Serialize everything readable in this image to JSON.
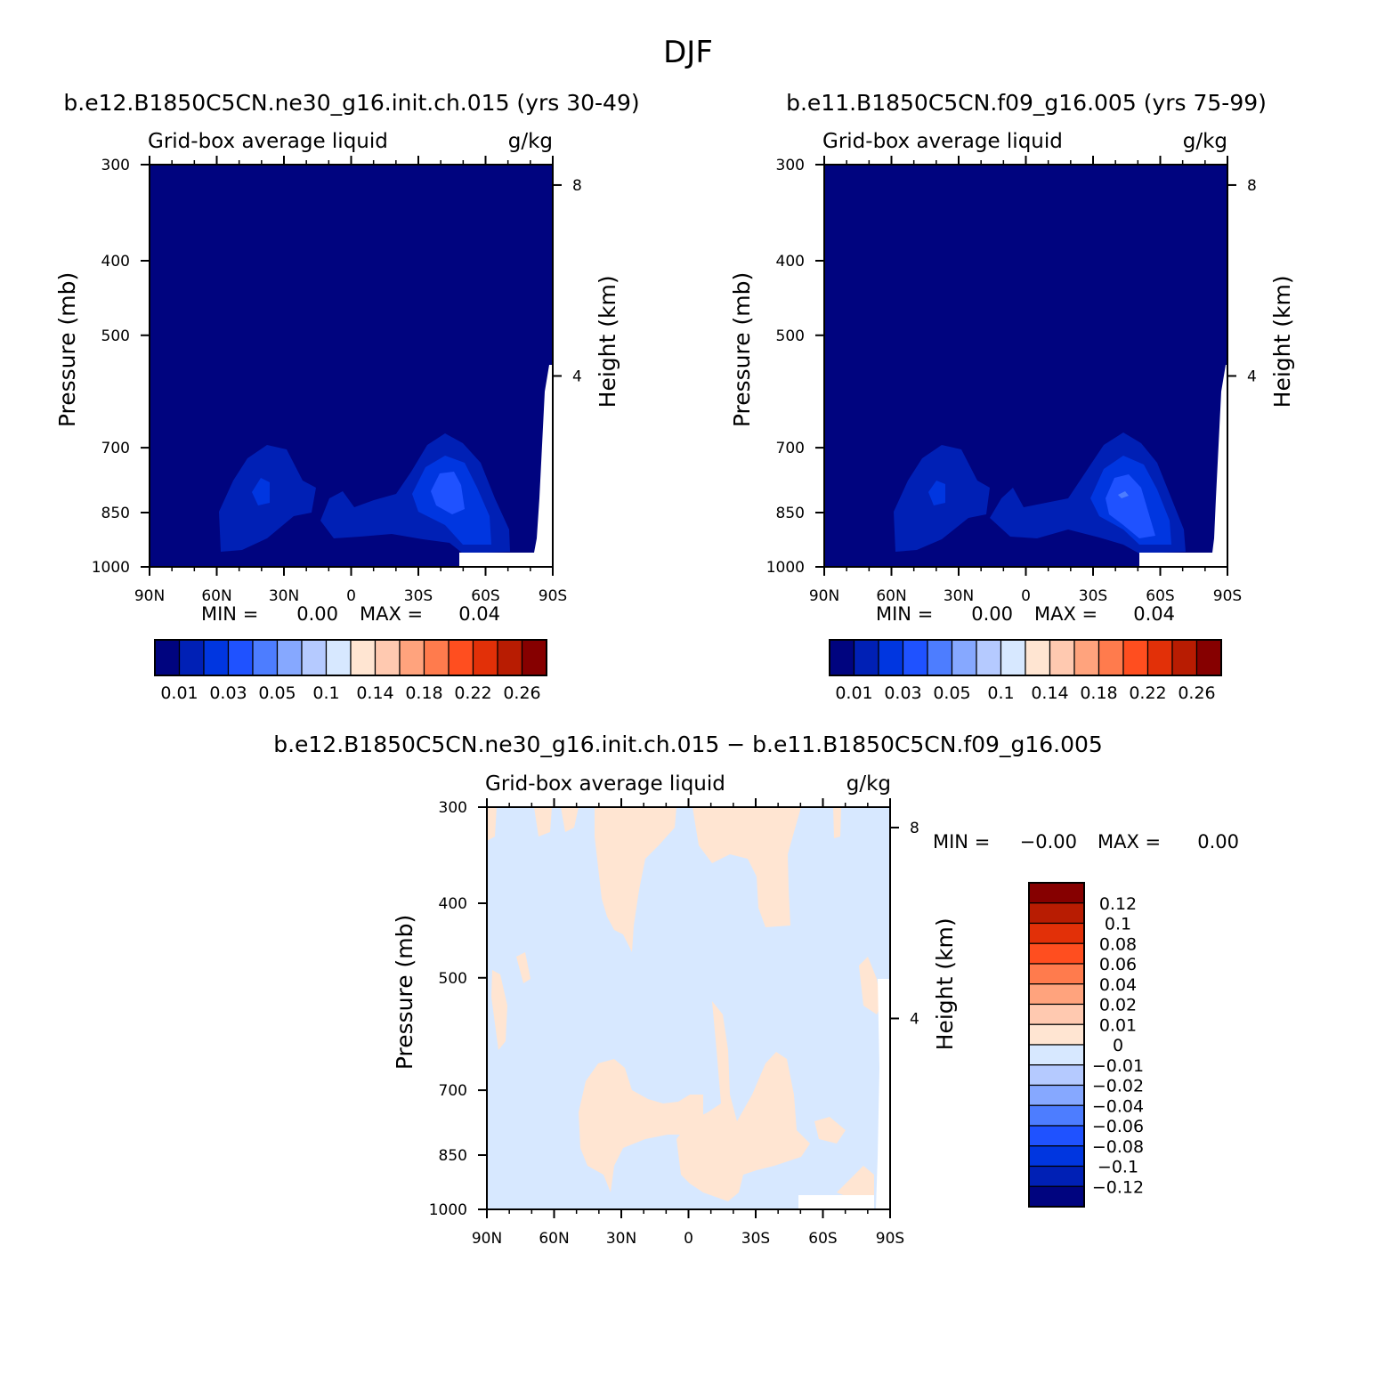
{
  "figure": {
    "title": "DJF",
    "diff_title": "b.e12.B1850C5CN.ne30_g16.init.ch.015 − b.e11.B1850C5CN.f09_g16.005"
  },
  "colors": {
    "scale_main": [
      "#00047f",
      "#0020b5",
      "#0036e0",
      "#1f52ff",
      "#4d7dff",
      "#86a8ff",
      "#b5caff",
      "#d7e8ff",
      "#ffe5d2",
      "#ffc9b0",
      "#ffa37d",
      "#ff7b4d",
      "#ff4e1f",
      "#e23008",
      "#b81c02",
      "#860000"
    ],
    "scale_diff": [
      "#00047f",
      "#0020b5",
      "#0036e0",
      "#1f52ff",
      "#4d7dff",
      "#86a8ff",
      "#b5caff",
      "#d7e8ff",
      "#ffe5d2",
      "#ffc9b0",
      "#ffa37d",
      "#ff7b4d",
      "#ff4e1f",
      "#e23008",
      "#b81c02",
      "#860000"
    ]
  },
  "chart_data": [
    {
      "type": "heatmap",
      "title": "b.e12.B1850C5CN.ne30_g16.init.ch.015 (yrs 30-49)",
      "subtitle_left": "Grid-box average liquid",
      "subtitle_right": "g/kg",
      "ylabel": "Pressure (mb)",
      "ylabel_right": "Height (km)",
      "x_ticks": [
        "90N",
        "60N",
        "30N",
        "0",
        "30S",
        "60S",
        "90S"
      ],
      "y_ticks": [
        "300",
        "400",
        "500",
        "700",
        "850",
        "1000"
      ],
      "y_ticks_right": [
        "8",
        "4"
      ],
      "stats": {
        "min_label": "MIN =",
        "min": "0.00",
        "max_label": "MAX =",
        "max": "0.04"
      },
      "colorbar_labels": [
        "0.01",
        "0.03",
        "0.05",
        "0.1",
        "0.14",
        "0.18",
        "0.22",
        "0.26"
      ],
      "ylim": [
        1000,
        300
      ],
      "xlim": [
        "90N",
        "90S"
      ]
    },
    {
      "type": "heatmap",
      "title": "b.e11.B1850C5CN.f09_g16.005 (yrs 75-99)",
      "subtitle_left": "Grid-box average liquid",
      "subtitle_right": "g/kg",
      "ylabel": "Pressure (mb)",
      "ylabel_right": "Height (km)",
      "x_ticks": [
        "90N",
        "60N",
        "30N",
        "0",
        "30S",
        "60S",
        "90S"
      ],
      "y_ticks": [
        "300",
        "400",
        "500",
        "700",
        "850",
        "1000"
      ],
      "y_ticks_right": [
        "8",
        "4"
      ],
      "stats": {
        "min_label": "MIN =",
        "min": "0.00",
        "max_label": "MAX =",
        "max": "0.04"
      },
      "colorbar_labels": [
        "0.01",
        "0.03",
        "0.05",
        "0.1",
        "0.14",
        "0.18",
        "0.22",
        "0.26"
      ],
      "ylim": [
        1000,
        300
      ],
      "xlim": [
        "90N",
        "90S"
      ]
    },
    {
      "type": "heatmap",
      "subtitle_left": "Grid-box average liquid",
      "subtitle_right": "g/kg",
      "ylabel": "Pressure (mb)",
      "ylabel_right": "Height (km)",
      "x_ticks": [
        "90N",
        "60N",
        "30N",
        "0",
        "30S",
        "60S",
        "90S"
      ],
      "y_ticks": [
        "300",
        "400",
        "500",
        "700",
        "850",
        "1000"
      ],
      "y_ticks_right": [
        "8",
        "4"
      ],
      "stats": {
        "min_label": "MIN =",
        "min": "−0.00",
        "max_label": "MAX =",
        "max": "0.00"
      },
      "colorbar_labels": [
        "0.12",
        "0.1",
        "0.08",
        "0.06",
        "0.04",
        "0.02",
        "0.01",
        "0",
        "−0.01",
        "−0.02",
        "−0.04",
        "−0.06",
        "−0.08",
        "−0.1",
        "−0.12"
      ],
      "ylim": [
        1000,
        300
      ],
      "xlim": [
        "90N",
        "90S"
      ]
    }
  ]
}
